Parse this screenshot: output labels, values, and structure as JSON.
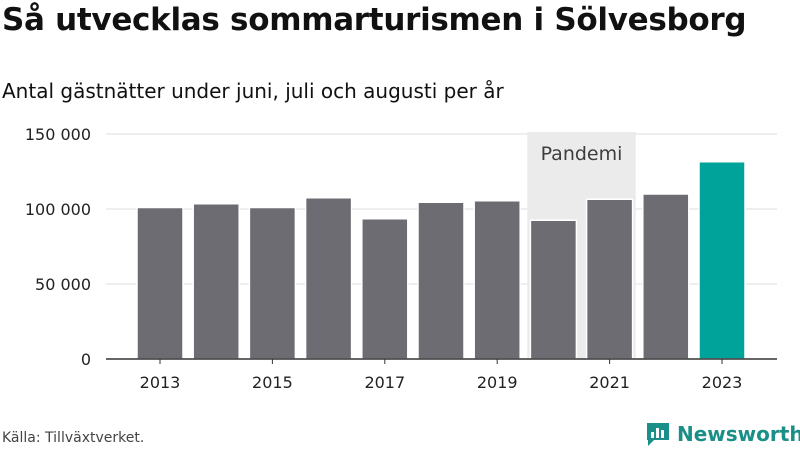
{
  "title": "Så utvecklas sommarturismen i Sölvesborg",
  "subtitle": "Antal gästnätter under juni, juli och augusti per år",
  "source": "Källa: Tillväxtverket.",
  "brand": {
    "name": "Newsworthy",
    "icon": "newsworthy-logo-icon",
    "color": "#1a8f88"
  },
  "colors": {
    "bar": "#6d6c72",
    "highlight": "#00a399",
    "band": "#ebebeb",
    "grid": "#dddddd",
    "axis": "#333333"
  },
  "chart_data": {
    "type": "bar",
    "categories": [
      "2013",
      "2014",
      "2015",
      "2016",
      "2017",
      "2018",
      "2019",
      "2020",
      "2021",
      "2022",
      "2023"
    ],
    "values": [
      101000,
      103500,
      101000,
      107500,
      93500,
      104500,
      105500,
      92500,
      106500,
      110000,
      131500
    ],
    "highlight_index": 10,
    "ylim": [
      0,
      150000
    ],
    "yticks": [
      0,
      50000,
      100000,
      150000
    ],
    "ytick_labels": [
      "0",
      "50 000",
      "100 000",
      "150 000"
    ],
    "xtick_labels": [
      "2013",
      "2015",
      "2017",
      "2019",
      "2021",
      "2023"
    ],
    "annotation": {
      "label": "Pandemi",
      "from": "2020",
      "to": "2021"
    },
    "grid": true,
    "xlabel": "",
    "ylabel": ""
  }
}
